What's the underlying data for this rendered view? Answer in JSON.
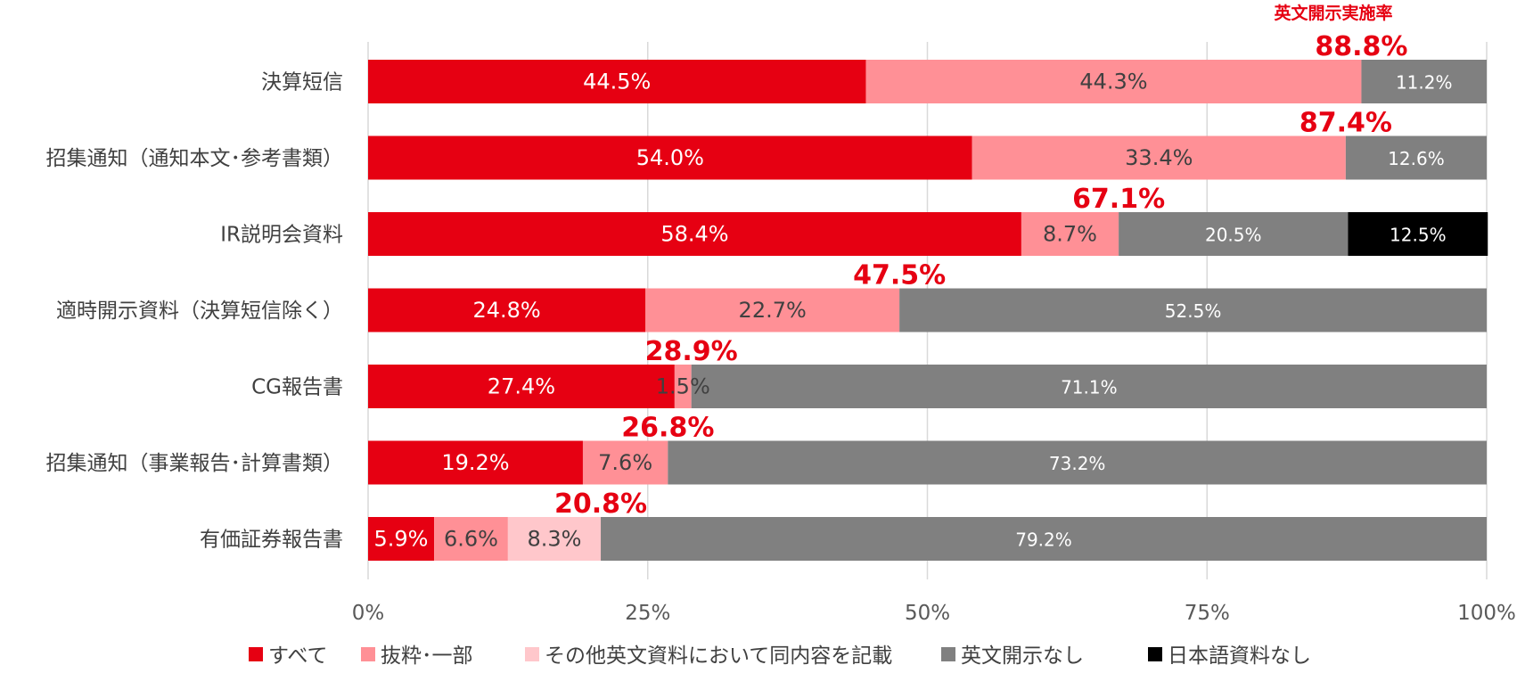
{
  "chart_data": {
    "type": "bar",
    "orientation": "horizontal",
    "stacked": true,
    "title": "",
    "xlabel": "",
    "ylabel": "",
    "xlim": [
      0,
      100
    ],
    "x_ticks": [
      "0%",
      "25%",
      "50%",
      "75%",
      "100%"
    ],
    "grid": true,
    "legend_position": "bottom",
    "categories": [
      "決算短信",
      "招集通知（通知本文･参考書類）",
      "IR説明会資料",
      "適時開示資料（決算短信除く）",
      "CG報告書",
      "招集通知（事業報告･計算書類）",
      "有価証券報告書"
    ],
    "series": [
      {
        "name": "すべて",
        "color": "#E60012",
        "values": [
          44.5,
          54.0,
          58.4,
          24.8,
          27.4,
          19.2,
          5.9
        ],
        "labels": [
          "44.5%",
          "54.0%",
          "58.4%",
          "24.8%",
          "27.4%",
          "19.2%",
          "5.9%"
        ]
      },
      {
        "name": "抜粋･一部",
        "color": "#FF9096",
        "values": [
          44.3,
          33.4,
          8.7,
          22.7,
          1.5,
          7.6,
          6.6
        ],
        "labels": [
          "44.3%",
          "33.4%",
          "8.7%",
          "22.7%",
          "1.5%",
          "7.6%",
          "6.6%"
        ]
      },
      {
        "name": "その他英文資料において同内容を記載",
        "color": "#FFC7CB",
        "values": [
          0,
          0,
          0,
          0,
          0,
          0,
          8.3
        ],
        "labels": [
          "",
          "",
          "",
          "",
          "",
          "",
          "8.3%"
        ]
      },
      {
        "name": "英文開示なし",
        "color": "#808080",
        "values": [
          11.2,
          12.6,
          20.5,
          52.5,
          71.1,
          73.2,
          79.2
        ],
        "labels": [
          "11.2%",
          "12.6%",
          "20.5%",
          "52.5%",
          "71.1%",
          "73.2%",
          "79.2%"
        ]
      },
      {
        "name": "日本語資料なし",
        "color": "#000000",
        "values": [
          0,
          0,
          12.5,
          0,
          0,
          0,
          0
        ],
        "labels": [
          "",
          "",
          "12.5%",
          "",
          "",
          "",
          ""
        ]
      }
    ],
    "annotation": {
      "header": "英文開示実施率",
      "values": [
        88.8,
        87.4,
        67.1,
        47.5,
        28.9,
        26.8,
        20.8
      ],
      "labels": [
        "88.8%",
        "87.4%",
        "67.1%",
        "47.5%",
        "28.9%",
        "26.8%",
        "20.8%"
      ],
      "color": "#E60012"
    }
  }
}
